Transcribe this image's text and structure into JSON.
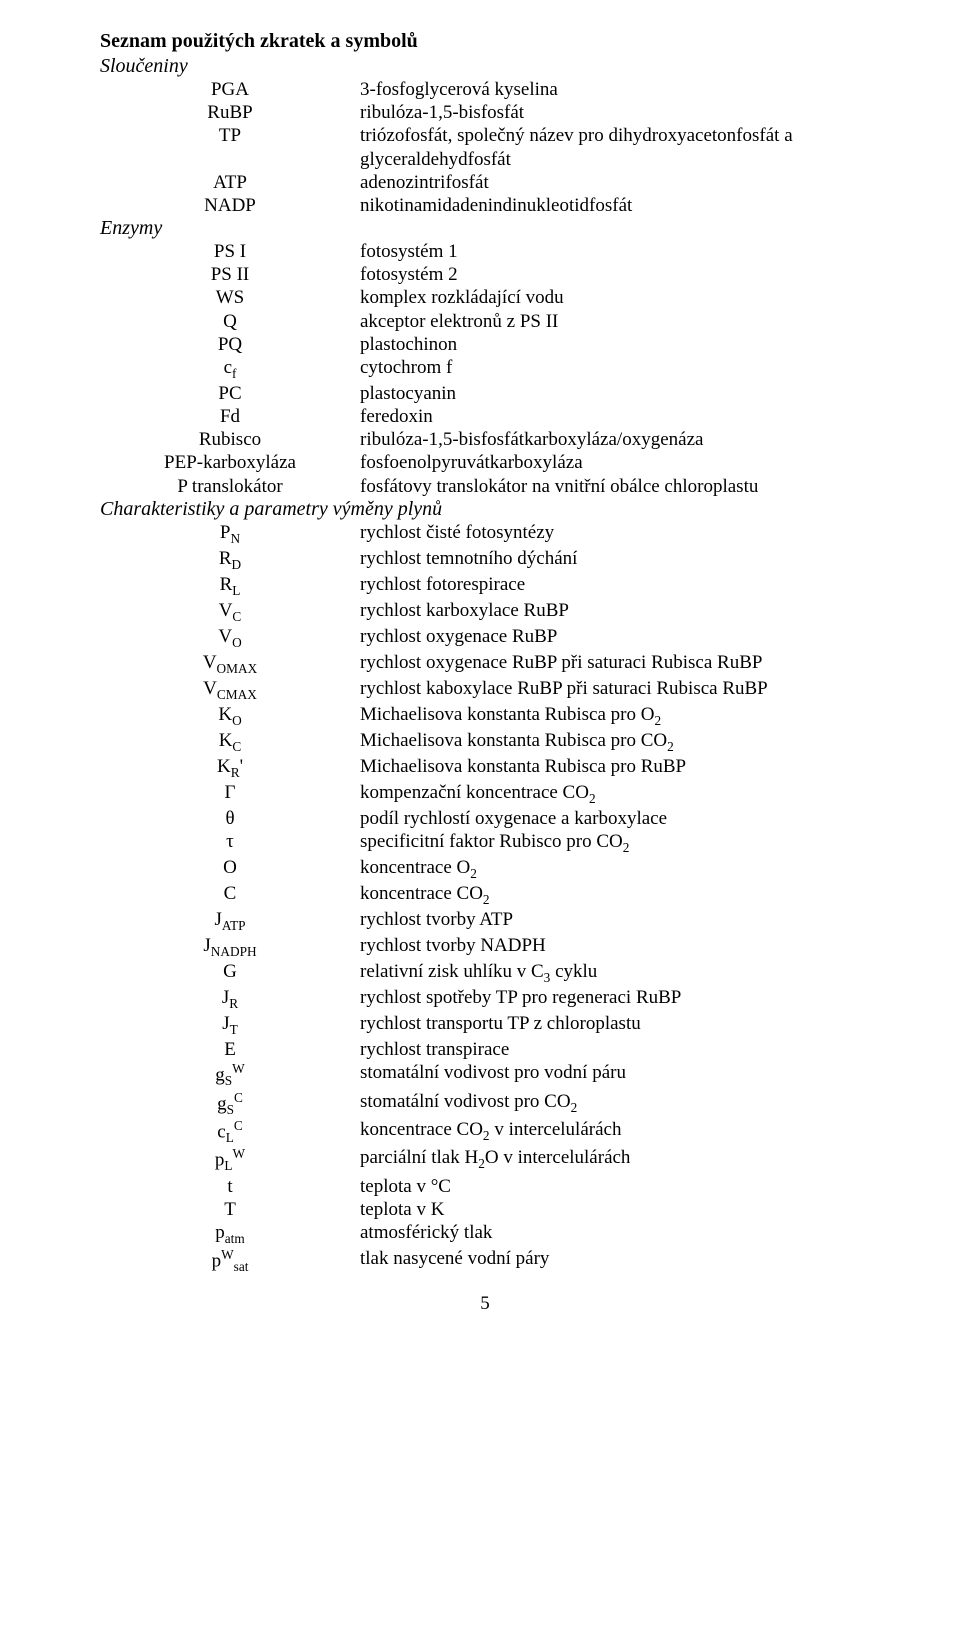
{
  "heading": "Seznam použitých zkratek a symbolů",
  "page_number": "5",
  "sections": [
    {
      "title": "Sloučeniny",
      "items": [
        {
          "sym": "PGA",
          "def": "3-fosfoglycerová kyselina"
        },
        {
          "sym": "RuBP",
          "def": "ribulóza-1,5-bisfosfát"
        },
        {
          "sym": "TP",
          "def": "triózofosfát, společný název pro dihydroxyacetonfosfát a glyceraldehydfosfát"
        },
        {
          "sym": "ATP",
          "def": "adenozintrifosfát"
        },
        {
          "sym": "NADP",
          "def": "nikotinamidadenindinukleotidfosfát"
        }
      ]
    },
    {
      "title": "Enzymy",
      "items": [
        {
          "sym": "PS I",
          "def": "fotosystém 1"
        },
        {
          "sym": "PS II",
          "def": "fotosystém 2"
        },
        {
          "sym": "WS",
          "def": "komplex rozkládající vodu"
        },
        {
          "sym": "Q",
          "def": "akceptor elektronů z PS II"
        },
        {
          "sym": "PQ",
          "def": "plastochinon"
        },
        {
          "sym": "c<sub>f</sub>",
          "def": "cytochrom f"
        },
        {
          "sym": "PC",
          "def": "plastocyanin"
        },
        {
          "sym": "Fd",
          "def": "feredoxin"
        },
        {
          "sym": "Rubisco",
          "def": "ribulóza-1,5-bisfosfátkarboxyláza/oxygenáza"
        },
        {
          "sym": "PEP-karboxyláza",
          "def": "fosfoenolpyruvátkarboxyláza"
        },
        {
          "sym": "P translokátor",
          "def": "fosfátovy translokátor na vnitřní obálce chloroplastu"
        }
      ]
    },
    {
      "title": "Charakteristiky a parametry výměny plynů",
      "items": [
        {
          "sym": "P<sub>N</sub>",
          "def": "rychlost čisté fotosyntézy"
        },
        {
          "sym": "R<sub>D</sub>",
          "def": "rychlost temnotního dýchání"
        },
        {
          "sym": "R<sub>L</sub>",
          "def": "rychlost fotorespirace"
        },
        {
          "sym": "V<sub>C</sub>",
          "def": "rychlost karboxylace RuBP"
        },
        {
          "sym": "V<sub>O</sub>",
          "def": "rychlost oxygenace RuBP"
        },
        {
          "sym": "V<sub>OMAX</sub>",
          "def": "rychlost oxygenace RuBP při saturaci Rubisca RuBP"
        },
        {
          "sym": "V<sub>CMAX</sub>",
          "def": "rychlost kaboxylace RuBP při saturaci Rubisca RuBP"
        },
        {
          "sym": "K<sub>O</sub>",
          "def": "Michaelisova konstanta Rubisca pro O<sub>2</sub>"
        },
        {
          "sym": "K<sub>C</sub>",
          "def": "Michaelisova konstanta Rubisca pro CO<sub>2</sub>"
        },
        {
          "sym": "K<sub>R</sub>'",
          "def": "Michaelisova konstanta Rubisca pro RuBP"
        },
        {
          "sym": "Γ",
          "def": "kompenzační koncentrace CO<sub>2</sub>"
        },
        {
          "sym": "θ",
          "def": "podíl rychlostí oxygenace a karboxylace"
        },
        {
          "sym": "τ",
          "def": "specificitní faktor Rubisco pro CO<sub>2</sub>"
        },
        {
          "sym": "O",
          "def": "koncentrace O<sub>2</sub>"
        },
        {
          "sym": "C",
          "def": "koncentrace CO<sub>2</sub>"
        },
        {
          "sym": "J<sub>ATP</sub>",
          "def": "rychlost tvorby ATP"
        },
        {
          "sym": "J<sub>NADPH</sub>",
          "def": "rychlost tvorby NADPH"
        },
        {
          "sym": "G",
          "def": "relativní zisk uhlíku v C<sub>3</sub> cyklu"
        },
        {
          "sym": "J<sub>R</sub>",
          "def": "rychlost spotřeby TP pro regeneraci RuBP"
        },
        {
          "sym": "J<sub>T</sub>",
          "def": "rychlost transportu TP z chloroplastu"
        },
        {
          "sym": "E",
          "def": "rychlost transpirace"
        },
        {
          "sym": "g<sub>S</sub><sup>W</sup>",
          "def": "stomatální vodivost pro vodní páru"
        },
        {
          "sym": "g<sub>S</sub><sup>C</sup>",
          "def": "stomatální vodivost pro CO<sub>2</sub>"
        },
        {
          "sym": "c<sub>L</sub><sup>C</sup>",
          "def": "koncentrace CO<sub>2</sub> v intercelulárách"
        },
        {
          "sym": "p<sub>L</sub><sup>W</sup>",
          "def": "parciální tlak H<sub>2</sub>O v intercelulárách"
        },
        {
          "sym": "t",
          "def": "teplota v °C"
        },
        {
          "sym": "T",
          "def": "teplota v K"
        },
        {
          "sym": "p<sub>atm</sub>",
          "def": "atmosférický tlak"
        },
        {
          "sym": "p<sup>W</sup><sub>sat</sub>",
          "def": "tlak nasycené vodní páry"
        }
      ]
    }
  ]
}
